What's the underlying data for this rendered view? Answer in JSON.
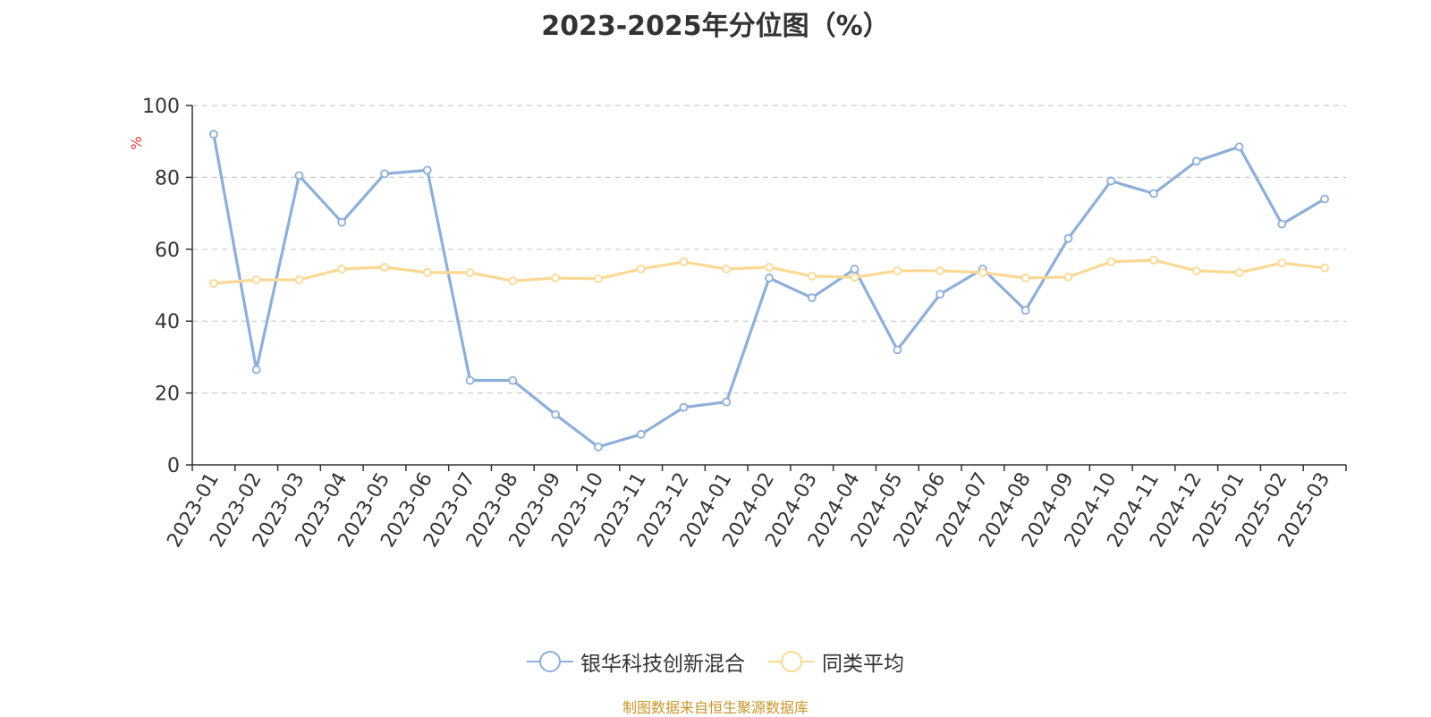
{
  "chart_data": {
    "type": "line",
    "title": "2023-2025年分位图（%）",
    "ylabel": "%",
    "ylim": [
      0,
      100
    ],
    "yticks": [
      0,
      20,
      40,
      60,
      80,
      100
    ],
    "grid": true,
    "legend_position": "bottom",
    "categories": [
      "2023-01",
      "2023-02",
      "2023-03",
      "2023-04",
      "2023-05",
      "2023-06",
      "2023-07",
      "2023-08",
      "2023-09",
      "2023-10",
      "2023-11",
      "2023-12",
      "2024-01",
      "2024-02",
      "2024-03",
      "2024-04",
      "2024-05",
      "2024-06",
      "2024-07",
      "2024-08",
      "2024-09",
      "2024-10",
      "2024-11",
      "2024-12",
      "2025-01",
      "2025-02",
      "2025-03"
    ],
    "series": [
      {
        "name": "银华科技创新混合",
        "color": "#8eafd9",
        "values": [
          92,
          26.5,
          80.5,
          67.5,
          81,
          82,
          23.5,
          23.5,
          14,
          5,
          8.5,
          16,
          17.5,
          52,
          46.5,
          54.5,
          32,
          47.5,
          54.5,
          43,
          63,
          79,
          75.5,
          84.5,
          88.5,
          67,
          74
        ]
      },
      {
        "name": "同类平均",
        "color": "#fbd894",
        "values": [
          50.5,
          51.5,
          51.5,
          54.5,
          55,
          53.5,
          53.5,
          51.2,
          52,
          51.8,
          54.5,
          56.5,
          54.5,
          55,
          52.5,
          52.2,
          54,
          54,
          53.5,
          52,
          52.3,
          56.5,
          57,
          54,
          53.5,
          56.2,
          54.8
        ]
      }
    ]
  },
  "footer": {
    "source_text": "制图数据来自恒生聚源数据库"
  },
  "colors": {
    "axis": "#333333",
    "grid": "#cccccc",
    "ylabel": "#e03b3b",
    "source": "#c8962b"
  }
}
